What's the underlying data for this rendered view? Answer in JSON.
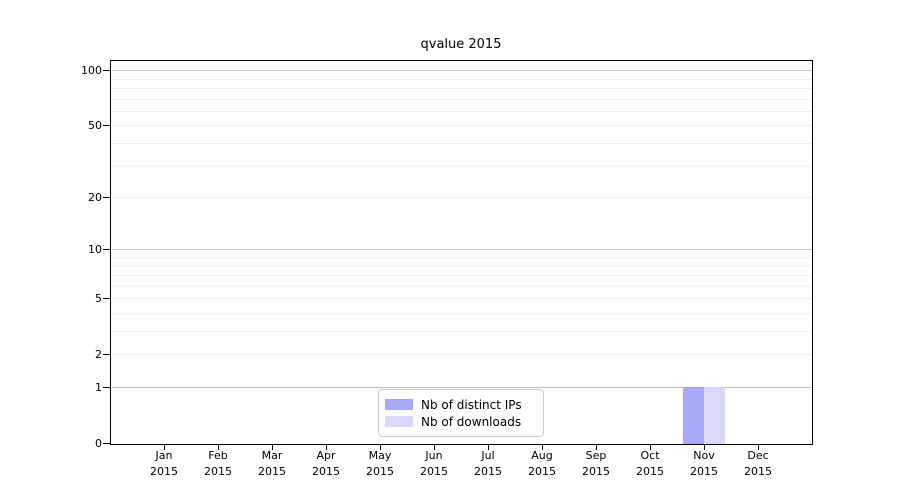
{
  "title": "qvalue 2015",
  "chart_data": {
    "type": "bar",
    "title": "qvalue 2015",
    "x_months": [
      "Jan",
      "Feb",
      "Mar",
      "Apr",
      "May",
      "Jun",
      "Jul",
      "Aug",
      "Sep",
      "Oct",
      "Nov",
      "Dec"
    ],
    "x_year": "2015",
    "y_ticks_labeled": [
      100,
      50,
      20,
      10,
      5,
      2,
      1,
      0
    ],
    "y_gridlines_decade": [
      1,
      10,
      100
    ],
    "y_gridlines_minor": [
      2,
      3,
      4,
      5,
      6,
      7,
      8,
      9,
      20,
      30,
      40,
      50,
      60,
      70,
      80,
      90
    ],
    "y_scale": "log1p",
    "ylim": [
      0,
      113
    ],
    "grid": true,
    "legend_position": "bottom-center",
    "series": [
      {
        "name": "Nb of distinct IPs",
        "color": "#a8a8f8",
        "values": [
          0,
          0,
          0,
          0,
          0,
          0,
          0,
          0,
          0,
          0,
          1,
          0
        ]
      },
      {
        "name": "Nb of downloads",
        "color": "#d8d8f8",
        "values": [
          0,
          0,
          0,
          0,
          0,
          0,
          0,
          0,
          0,
          0,
          1,
          0
        ]
      }
    ]
  },
  "colors": {
    "background": "#ffffff",
    "axis": "#000000",
    "grid_decade": "#c0c0c0",
    "grid_minor": "#ececec",
    "legend_border": "#cccccc",
    "text": "#000000"
  }
}
